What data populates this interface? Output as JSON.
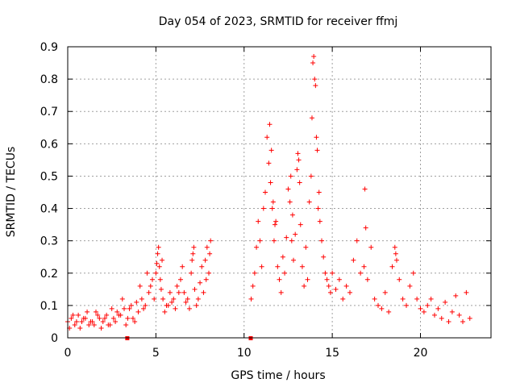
{
  "chart_data": {
    "type": "scatter",
    "title": "Day 054 of 2023, SRMTID for receiver ffmj",
    "xlabel": "GPS time / hours",
    "ylabel": "SRMTID / TECUs",
    "xlim": [
      0,
      24
    ],
    "ylim": [
      0,
      0.9
    ],
    "x_ticks": [
      0,
      5,
      10,
      15,
      20
    ],
    "x_tick_labels": [
      "0",
      "5",
      "10",
      "15",
      "20"
    ],
    "y_ticks": [
      0,
      0.1,
      0.2,
      0.3,
      0.4,
      0.5,
      0.6,
      0.7,
      0.8,
      0.9
    ],
    "y_tick_labels": [
      "0",
      "0.1",
      "0.2",
      "0.3",
      "0.4",
      "0.5",
      "0.6",
      "0.7",
      "0.8",
      "0.9"
    ],
    "grid": true,
    "marker": "+",
    "series_color": "#ff0000",
    "data_gap_markers": [
      3.4,
      10.4
    ],
    "series": [
      {
        "name": "SRMTID",
        "x": [
          0.0,
          0.2,
          0.4,
          0.6,
          0.8,
          1.0,
          1.2,
          1.4,
          1.6,
          1.8,
          2.0,
          2.2,
          2.4,
          2.6,
          2.8,
          3.0,
          3.2,
          3.4,
          3.6,
          3.8,
          4.0,
          4.2,
          4.4,
          4.6,
          4.8,
          5.0,
          5.1,
          5.2,
          5.3,
          5.4,
          5.6,
          5.8,
          6.0,
          6.2,
          6.4,
          6.5,
          6.6,
          6.8,
          7.0,
          7.1,
          7.2,
          7.4,
          7.5,
          7.6,
          7.8,
          7.9,
          8.0,
          8.1,
          10.4,
          10.5,
          10.6,
          10.7,
          10.8,
          10.9,
          11.0,
          11.1,
          11.2,
          11.3,
          11.4,
          11.5,
          11.6,
          11.7,
          11.8,
          11.9,
          12.0,
          12.1,
          12.2,
          12.3,
          12.4,
          12.5,
          12.6,
          12.7,
          12.8,
          12.9,
          13.0,
          13.1,
          13.2,
          13.3,
          13.4,
          13.5,
          13.6,
          13.7,
          13.8,
          13.9,
          14.0,
          14.1,
          14.2,
          14.3,
          14.4,
          14.5,
          14.6,
          14.7,
          14.8,
          14.9,
          15.0,
          15.2,
          15.4,
          15.6,
          15.8,
          16.0,
          16.2,
          16.4,
          16.6,
          16.8,
          17.0,
          17.2,
          17.4,
          17.6,
          17.8,
          18.0,
          18.2,
          18.4,
          18.6,
          18.8,
          19.0,
          19.2,
          19.4,
          19.6,
          19.8,
          20.0,
          20.2,
          20.4,
          20.6,
          20.8,
          21.0,
          21.2,
          21.4,
          21.6,
          21.8,
          22.0,
          22.2,
          22.4,
          22.6,
          22.8,
          0.1,
          0.3,
          0.5,
          0.7,
          0.9,
          1.1,
          1.3,
          1.5,
          1.7,
          1.9,
          2.1,
          2.3,
          2.5,
          2.7,
          2.9,
          3.1,
          3.3,
          3.5,
          3.7,
          3.9,
          4.1,
          4.3,
          4.5,
          4.7,
          4.9,
          5.05,
          5.15,
          5.25,
          5.35,
          5.5,
          5.7,
          5.9,
          6.1,
          6.3,
          6.7,
          6.9,
          7.05,
          7.15,
          7.3,
          7.7,
          7.85,
          8.05,
          11.45,
          11.55,
          11.65,
          11.75,
          12.65,
          12.75,
          13.05,
          13.15,
          13.85,
          13.95,
          14.05,
          14.15,
          14.25,
          16.85,
          16.9,
          18.55,
          18.65
        ],
        "y": [
          0.05,
          0.06,
          0.04,
          0.07,
          0.05,
          0.06,
          0.04,
          0.05,
          0.08,
          0.06,
          0.05,
          0.07,
          0.04,
          0.06,
          0.08,
          0.07,
          0.09,
          0.06,
          0.1,
          0.05,
          0.08,
          0.12,
          0.1,
          0.14,
          0.18,
          0.2,
          0.26,
          0.22,
          0.15,
          0.12,
          0.1,
          0.14,
          0.12,
          0.16,
          0.18,
          0.22,
          0.14,
          0.12,
          0.2,
          0.26,
          0.15,
          0.12,
          0.17,
          0.22,
          0.24,
          0.28,
          0.2,
          0.3,
          0.12,
          0.16,
          0.2,
          0.28,
          0.36,
          0.3,
          0.22,
          0.4,
          0.45,
          0.62,
          0.54,
          0.48,
          0.4,
          0.3,
          0.36,
          0.22,
          0.18,
          0.14,
          0.25,
          0.2,
          0.31,
          0.46,
          0.42,
          0.3,
          0.24,
          0.32,
          0.52,
          0.55,
          0.35,
          0.22,
          0.16,
          0.28,
          0.18,
          0.42,
          0.5,
          0.85,
          0.8,
          0.62,
          0.4,
          0.36,
          0.3,
          0.25,
          0.2,
          0.18,
          0.16,
          0.14,
          0.2,
          0.15,
          0.18,
          0.12,
          0.16,
          0.14,
          0.24,
          0.3,
          0.2,
          0.22,
          0.18,
          0.28,
          0.12,
          0.1,
          0.09,
          0.14,
          0.08,
          0.22,
          0.26,
          0.18,
          0.12,
          0.1,
          0.16,
          0.2,
          0.12,
          0.09,
          0.08,
          0.1,
          0.12,
          0.07,
          0.09,
          0.06,
          0.11,
          0.05,
          0.08,
          0.13,
          0.07,
          0.05,
          0.14,
          0.06,
          0.03,
          0.07,
          0.05,
          0.03,
          0.06,
          0.08,
          0.05,
          0.04,
          0.07,
          0.03,
          0.06,
          0.04,
          0.09,
          0.05,
          0.07,
          0.12,
          0.04,
          0.09,
          0.06,
          0.11,
          0.16,
          0.09,
          0.2,
          0.16,
          0.12,
          0.23,
          0.28,
          0.18,
          0.24,
          0.08,
          0.1,
          0.11,
          0.09,
          0.14,
          0.11,
          0.09,
          0.24,
          0.28,
          0.1,
          0.14,
          0.18,
          0.26,
          0.66,
          0.58,
          0.42,
          0.35,
          0.5,
          0.38,
          0.57,
          0.48,
          0.68,
          0.87,
          0.78,
          0.58,
          0.45,
          0.46,
          0.34,
          0.28,
          0.24
        ]
      }
    ]
  }
}
